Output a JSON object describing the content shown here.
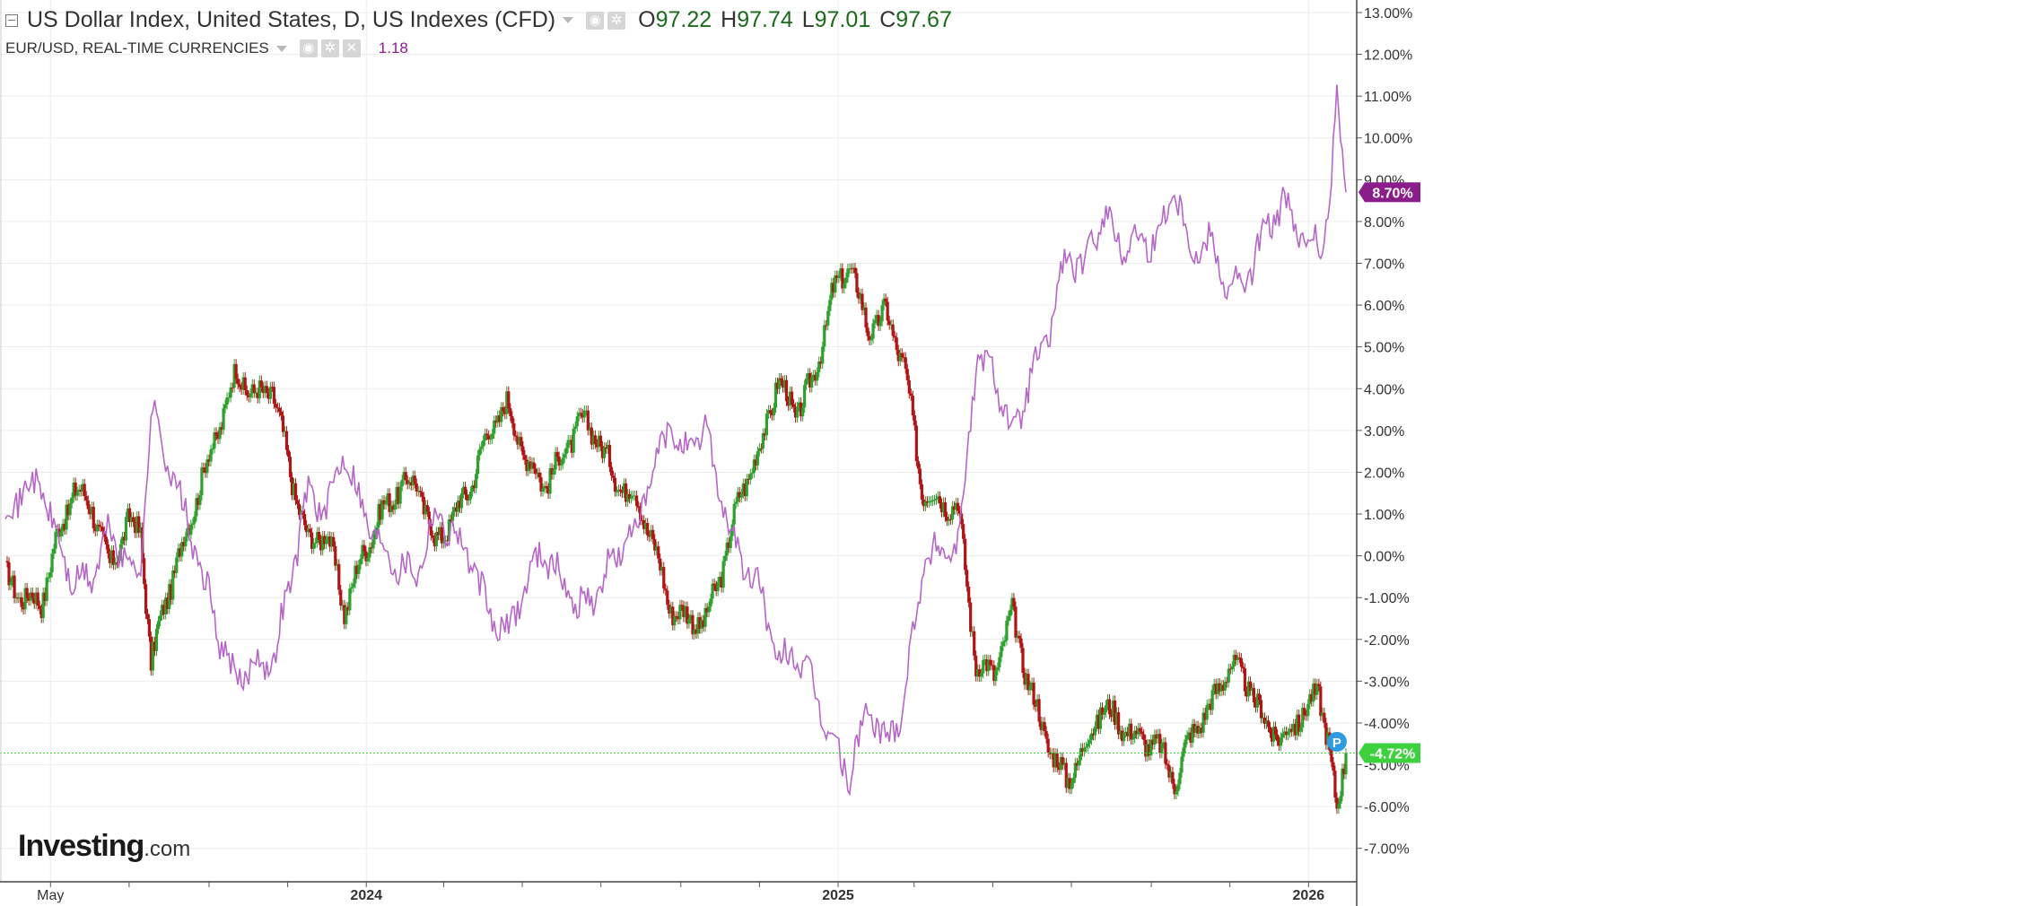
{
  "header": {
    "main_symbol": "US Dollar Index, United States, D, US Indexes (CFD)",
    "ohlc": [
      {
        "key": "O",
        "value": "97.22"
      },
      {
        "key": "H",
        "value": "97.74"
      },
      {
        "key": "L",
        "value": "97.01"
      },
      {
        "key": "C",
        "value": "97.67"
      }
    ],
    "compare_symbol": "EUR/USD, REAL-TIME CURRENCIES",
    "compare_value": "1.18",
    "close_glyph": "✕"
  },
  "logo": {
    "main": "Investing",
    "suffix": ".com"
  },
  "colors": {
    "up": "#2ea02e",
    "down": "#b01414",
    "compare_line": "#b566c7",
    "usd_badge": "#3ed13e",
    "eur_badge": "#8a1d8a",
    "grid": "#ececec",
    "pricing_line": "#3ed13e",
    "marker": "#2f9ae0"
  },
  "chart_data": {
    "type": "line",
    "title": "",
    "y_axis": {
      "min": -7.8,
      "max": 13.3,
      "unit": "%",
      "ticks": [
        13,
        12,
        11,
        10,
        9,
        8,
        7,
        6,
        5,
        4,
        3,
        2,
        1,
        0,
        -1,
        -2,
        -3,
        -4,
        -5,
        -6,
        -7
      ],
      "tick_labels": [
        "13.00%",
        "12.00%",
        "11.00%",
        "10.00%",
        "9.00%",
        "8.00%",
        "7.00%",
        "6.00%",
        "5.00%",
        "4.00%",
        "3.00%",
        "2.00%",
        "1.00%",
        "0.00%",
        "-1.00%",
        "-2.00%",
        "-3.00%",
        "-4.00%",
        "-5.00%",
        "-6.00%",
        "-7.00%"
      ]
    },
    "x_axis": {
      "start": "2023-03-27",
      "end": "2026-01-30",
      "labels": [
        {
          "date": "2023-05-01",
          "text": "May",
          "bold": false
        },
        {
          "date": "2024-01-01",
          "text": "2024",
          "bold": true
        },
        {
          "date": "2025-01-01",
          "text": "2025",
          "bold": true
        },
        {
          "date": "2026-01-01",
          "text": "2026",
          "bold": true
        }
      ],
      "minor_ticks": [
        "2023-07-01",
        "2023-09-01",
        "2023-11-01",
        "2024-03-01",
        "2024-05-01",
        "2024-07-01",
        "2024-09-01",
        "2024-11-01",
        "2025-03-01",
        "2025-05-01",
        "2025-07-01",
        "2025-09-01",
        "2025-11-01"
      ]
    },
    "series": [
      {
        "name": "US Dollar Index",
        "style": "candlestick",
        "last_label": "-4.72%",
        "last_value": -4.72,
        "points": [
          [
            "2023-03-27",
            -0.5
          ],
          [
            "2023-04-10",
            -1.0
          ],
          [
            "2023-04-24",
            -1.1
          ],
          [
            "2023-05-05",
            0.3
          ],
          [
            "2023-05-19",
            1.6
          ],
          [
            "2023-06-02",
            1.2
          ],
          [
            "2023-06-16",
            -0.3
          ],
          [
            "2023-06-30",
            0.8
          ],
          [
            "2023-07-10",
            0.6
          ],
          [
            "2023-07-18",
            -2.6
          ],
          [
            "2023-07-28",
            -1.2
          ],
          [
            "2023-08-11",
            0.2
          ],
          [
            "2023-08-25",
            1.7
          ],
          [
            "2023-09-08",
            3.0
          ],
          [
            "2023-09-22",
            4.4
          ],
          [
            "2023-10-06",
            3.8
          ],
          [
            "2023-10-20",
            4.0
          ],
          [
            "2023-11-03",
            2.0
          ],
          [
            "2023-11-17",
            0.3
          ],
          [
            "2023-12-01",
            0.6
          ],
          [
            "2023-12-15",
            -1.3
          ],
          [
            "2023-12-29",
            0.0
          ],
          [
            "2024-01-12",
            1.0
          ],
          [
            "2024-01-26",
            1.6
          ],
          [
            "2024-02-09",
            1.8
          ],
          [
            "2024-02-23",
            0.3
          ],
          [
            "2024-03-08",
            0.9
          ],
          [
            "2024-03-22",
            1.7
          ],
          [
            "2024-04-05",
            3.0
          ],
          [
            "2024-04-19",
            3.6
          ],
          [
            "2024-05-03",
            2.4
          ],
          [
            "2024-05-17",
            1.7
          ],
          [
            "2024-05-31",
            2.3
          ],
          [
            "2024-06-14",
            3.2
          ],
          [
            "2024-06-28",
            2.9
          ],
          [
            "2024-07-12",
            1.8
          ],
          [
            "2024-07-26",
            1.5
          ],
          [
            "2024-08-09",
            0.5
          ],
          [
            "2024-08-23",
            -1.2
          ],
          [
            "2024-09-06",
            -1.5
          ],
          [
            "2024-09-20",
            -1.6
          ],
          [
            "2024-10-04",
            -0.2
          ],
          [
            "2024-10-18",
            1.6
          ],
          [
            "2024-11-01",
            2.5
          ],
          [
            "2024-11-15",
            4.2
          ],
          [
            "2024-11-29",
            3.4
          ],
          [
            "2024-12-13",
            4.2
          ],
          [
            "2024-12-27",
            6.2
          ],
          [
            "2025-01-10",
            7.0
          ],
          [
            "2025-01-24",
            5.4
          ],
          [
            "2025-02-07",
            5.8
          ],
          [
            "2025-02-21",
            4.6
          ],
          [
            "2025-03-07",
            1.6
          ],
          [
            "2025-03-21",
            1.3
          ],
          [
            "2025-04-04",
            1.2
          ],
          [
            "2025-04-18",
            -2.6
          ],
          [
            "2025-05-02",
            -2.8
          ],
          [
            "2025-05-16",
            -1.4
          ],
          [
            "2025-05-30",
            -3.2
          ],
          [
            "2025-06-13",
            -4.5
          ],
          [
            "2025-06-27",
            -5.4
          ],
          [
            "2025-07-11",
            -4.6
          ],
          [
            "2025-07-25",
            -3.6
          ],
          [
            "2025-08-08",
            -4.0
          ],
          [
            "2025-08-22",
            -4.4
          ],
          [
            "2025-09-05",
            -4.5
          ],
          [
            "2025-09-19",
            -5.4
          ],
          [
            "2025-10-03",
            -4.2
          ],
          [
            "2025-10-17",
            -3.6
          ],
          [
            "2025-10-31",
            -2.6
          ],
          [
            "2025-11-14",
            -3.0
          ],
          [
            "2025-11-28",
            -4.0
          ],
          [
            "2025-12-12",
            -4.4
          ],
          [
            "2025-12-26",
            -3.8
          ],
          [
            "2026-01-09",
            -3.3
          ],
          [
            "2026-01-16",
            -4.3
          ],
          [
            "2026-01-23",
            -6.2
          ],
          [
            "2026-01-30",
            -4.72
          ]
        ]
      },
      {
        "name": "EUR/USD",
        "style": "line",
        "last_label": "8.70%",
        "last_value": 8.7,
        "points": [
          [
            "2023-03-27",
            1.0
          ],
          [
            "2023-04-10",
            1.6
          ],
          [
            "2023-04-24",
            1.7
          ],
          [
            "2023-05-05",
            0.5
          ],
          [
            "2023-05-19",
            -0.7
          ],
          [
            "2023-06-02",
            -0.5
          ],
          [
            "2023-06-16",
            0.6
          ],
          [
            "2023-06-30",
            -0.2
          ],
          [
            "2023-07-10",
            -0.3
          ],
          [
            "2023-07-18",
            3.5
          ],
          [
            "2023-07-28",
            2.6
          ],
          [
            "2023-08-11",
            1.2
          ],
          [
            "2023-08-25",
            -0.3
          ],
          [
            "2023-09-08",
            -1.8
          ],
          [
            "2023-09-22",
            -3.1
          ],
          [
            "2023-10-06",
            -2.5
          ],
          [
            "2023-10-20",
            -2.6
          ],
          [
            "2023-11-03",
            -0.6
          ],
          [
            "2023-11-17",
            1.6
          ],
          [
            "2023-12-01",
            1.0
          ],
          [
            "2023-12-15",
            2.6
          ],
          [
            "2023-12-29",
            1.1
          ],
          [
            "2024-01-12",
            0.3
          ],
          [
            "2024-01-26",
            -0.2
          ],
          [
            "2024-02-09",
            -0.4
          ],
          [
            "2024-02-23",
            1.0
          ],
          [
            "2024-03-08",
            0.6
          ],
          [
            "2024-03-22",
            -0.1
          ],
          [
            "2024-04-05",
            -1.4
          ],
          [
            "2024-04-19",
            -1.9
          ],
          [
            "2024-05-03",
            -0.7
          ],
          [
            "2024-05-17",
            0.2
          ],
          [
            "2024-05-31",
            -0.6
          ],
          [
            "2024-06-14",
            -1.2
          ],
          [
            "2024-06-28",
            -0.9
          ],
          [
            "2024-07-12",
            0.0
          ],
          [
            "2024-07-26",
            0.5
          ],
          [
            "2024-08-09",
            1.8
          ],
          [
            "2024-08-23",
            3.1
          ],
          [
            "2024-09-06",
            2.4
          ],
          [
            "2024-09-20",
            3.1
          ],
          [
            "2024-10-04",
            1.2
          ],
          [
            "2024-10-18",
            -0.2
          ],
          [
            "2024-11-01",
            -0.7
          ],
          [
            "2024-11-15",
            -2.6
          ],
          [
            "2024-11-29",
            -2.3
          ],
          [
            "2024-12-13",
            -3.2
          ],
          [
            "2024-12-27",
            -4.4
          ],
          [
            "2025-01-10",
            -5.3
          ],
          [
            "2025-01-24",
            -3.6
          ],
          [
            "2025-02-07",
            -4.5
          ],
          [
            "2025-02-21",
            -3.5
          ],
          [
            "2025-03-07",
            -0.3
          ],
          [
            "2025-03-21",
            0.2
          ],
          [
            "2025-04-04",
            0.2
          ],
          [
            "2025-04-18",
            4.6
          ],
          [
            "2025-05-02",
            4.5
          ],
          [
            "2025-05-16",
            2.8
          ],
          [
            "2025-05-30",
            4.2
          ],
          [
            "2025-06-13",
            5.3
          ],
          [
            "2025-06-27",
            7.2
          ],
          [
            "2025-07-11",
            6.8
          ],
          [
            "2025-07-25",
            8.3
          ],
          [
            "2025-08-08",
            7.4
          ],
          [
            "2025-08-22",
            7.6
          ],
          [
            "2025-09-05",
            7.5
          ],
          [
            "2025-09-19",
            8.9
          ],
          [
            "2025-10-03",
            7.2
          ],
          [
            "2025-10-17",
            7.6
          ],
          [
            "2025-10-31",
            6.4
          ],
          [
            "2025-11-14",
            6.6
          ],
          [
            "2025-11-28",
            7.8
          ],
          [
            "2025-12-12",
            8.4
          ],
          [
            "2025-12-26",
            7.6
          ],
          [
            "2026-01-09",
            7.4
          ],
          [
            "2026-01-16",
            8.0
          ],
          [
            "2026-01-23",
            10.8
          ],
          [
            "2026-01-30",
            8.7
          ]
        ]
      }
    ],
    "markers": [
      {
        "date": "2026-01-23",
        "value": -4.45,
        "text": "P"
      }
    ],
    "grid": true
  }
}
